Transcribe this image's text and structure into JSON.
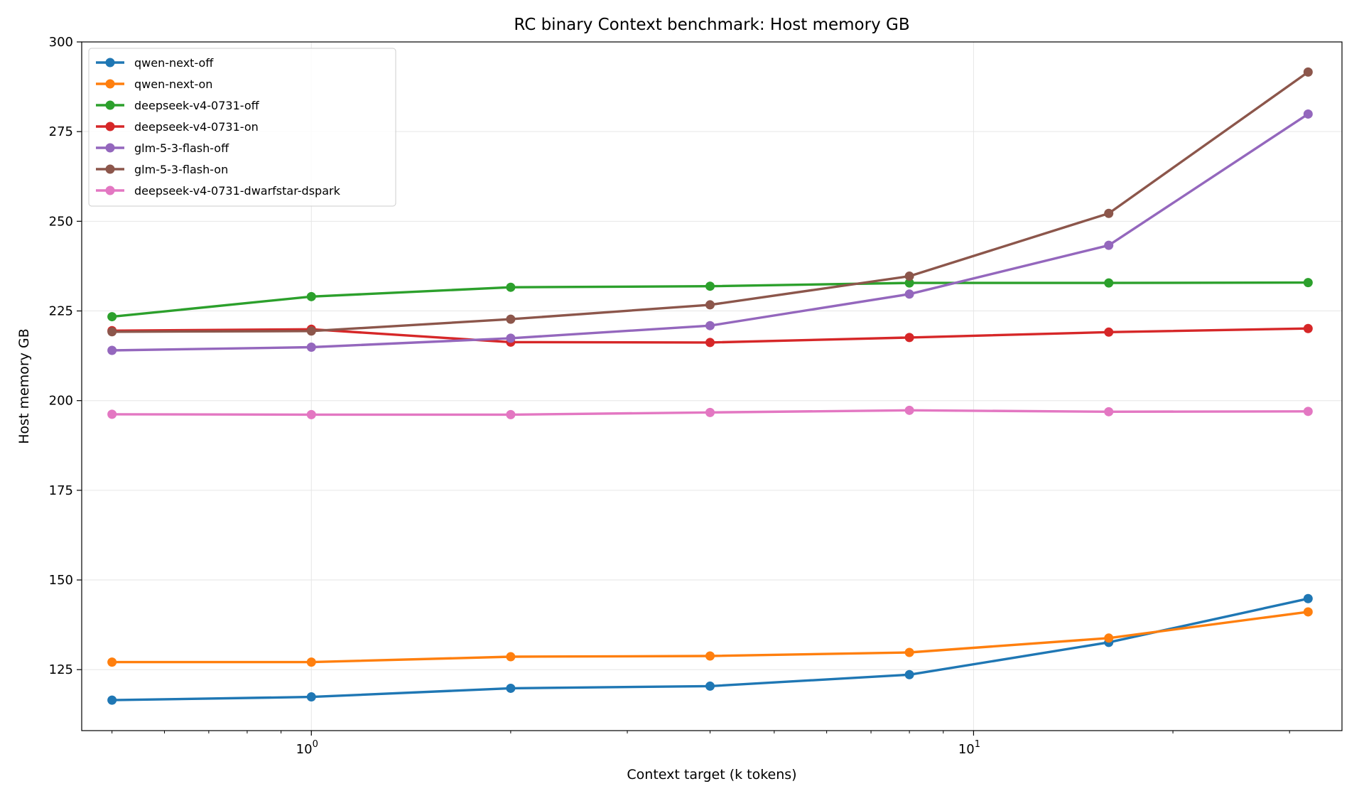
{
  "chart_data": {
    "type": "line",
    "title": "RC binary Context benchmark: Host memory GB",
    "xlabel": "Context target (k tokens)",
    "ylabel": "Host memory GB",
    "xscale": "log",
    "xlim": [
      0.45,
      36
    ],
    "ylim": [
      108,
      300
    ],
    "x": [
      0.5,
      1,
      2,
      4,
      8,
      16,
      32
    ],
    "xticks": [
      {
        "value": 1,
        "base": "10",
        "exp": "0"
      },
      {
        "value": 10,
        "base": "10",
        "exp": "1"
      }
    ],
    "yticks": [
      "125",
      "150",
      "175",
      "200",
      "225",
      "250",
      "275",
      "300"
    ],
    "grid": true,
    "legend_position": "top-left",
    "series": [
      {
        "name": "qwen-next-off",
        "color": "#1f77b4",
        "values": [
          116.5,
          117.4,
          119.8,
          120.4,
          123.6,
          132.6,
          144.8
        ]
      },
      {
        "name": "qwen-next-on",
        "color": "#ff7f0e",
        "values": [
          127.1,
          127.1,
          128.6,
          128.8,
          129.8,
          133.8,
          141.1
        ]
      },
      {
        "name": "deepseek-v4-0731-off",
        "color": "#2ca02c",
        "values": [
          223.4,
          229.0,
          231.6,
          231.9,
          232.8,
          232.8,
          232.9
        ]
      },
      {
        "name": "deepseek-v4-0731-on",
        "color": "#d62728",
        "values": [
          219.5,
          219.9,
          216.3,
          216.2,
          217.6,
          219.1,
          220.1
        ]
      },
      {
        "name": "glm-5-3-flash-off",
        "color": "#9467bd",
        "values": [
          214.0,
          214.9,
          217.4,
          220.9,
          229.7,
          243.3,
          279.9
        ]
      },
      {
        "name": "glm-5-3-flash-on",
        "color": "#8c564b",
        "values": [
          219.2,
          219.4,
          222.7,
          226.7,
          234.7,
          252.2,
          291.6
        ]
      },
      {
        "name": "deepseek-v4-0731-dwarfstar-dspark",
        "color": "#e377c2",
        "values": [
          196.2,
          196.1,
          196.1,
          196.7,
          197.3,
          196.9,
          197.0
        ]
      }
    ]
  }
}
